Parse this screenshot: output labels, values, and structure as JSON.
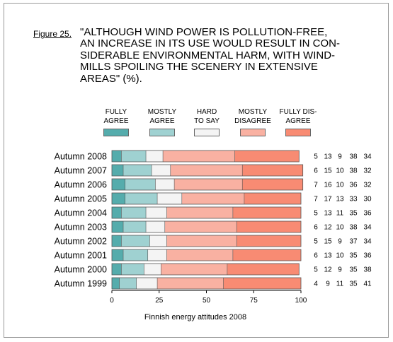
{
  "figure": {
    "label": "Figure 25.",
    "title": "\"ALTHOUGH WIND POWER IS POLLUTION-FREE,\nAN INCREASE IN ITS USE WOULD RESULT IN CON-\nSIDERABLE ENVIRONMENTAL HARM, WITH WIND-\nMILLS SPOILING THE SCENERY IN EXTENSIVE\nAREAS\" (%)."
  },
  "source": "Finnish energy attitudes 2008",
  "chart_data": {
    "type": "bar",
    "orientation": "horizontal",
    "stacked": true,
    "xlim": [
      0,
      100
    ],
    "xticks": [
      0,
      25,
      50,
      75,
      100
    ],
    "categories": [
      "Autumn 2008",
      "Autumn 2007",
      "Autumn 2006",
      "Autumn 2005",
      "Autumn 2004",
      "Autumn 2003",
      "Autumn 2002",
      "Autumn 2001",
      "Autumn 2000",
      "Autumn 1999"
    ],
    "series": [
      {
        "name": "FULLY\nAGREE",
        "color": "#55acac",
        "values": [
          5,
          6,
          7,
          7,
          5,
          6,
          5,
          6,
          5,
          4
        ]
      },
      {
        "name": "MOSTLY\nAGREE",
        "color": "#9fd1d1",
        "values": [
          13,
          15,
          16,
          17,
          13,
          12,
          15,
          13,
          12,
          9
        ]
      },
      {
        "name": "HARD\nTO SAY",
        "color": "#f4f4f4",
        "values": [
          9,
          10,
          10,
          13,
          11,
          10,
          9,
          10,
          9,
          11
        ]
      },
      {
        "name": "MOSTLY\nDISAGREE",
        "color": "#f9b1a2",
        "values": [
          38,
          38,
          36,
          33,
          35,
          38,
          37,
          35,
          35,
          35
        ]
      },
      {
        "name": "FULLY DIS-\nAGREE",
        "color": "#f88b73",
        "values": [
          34,
          32,
          32,
          30,
          36,
          34,
          34,
          36,
          38,
          41
        ]
      }
    ]
  }
}
